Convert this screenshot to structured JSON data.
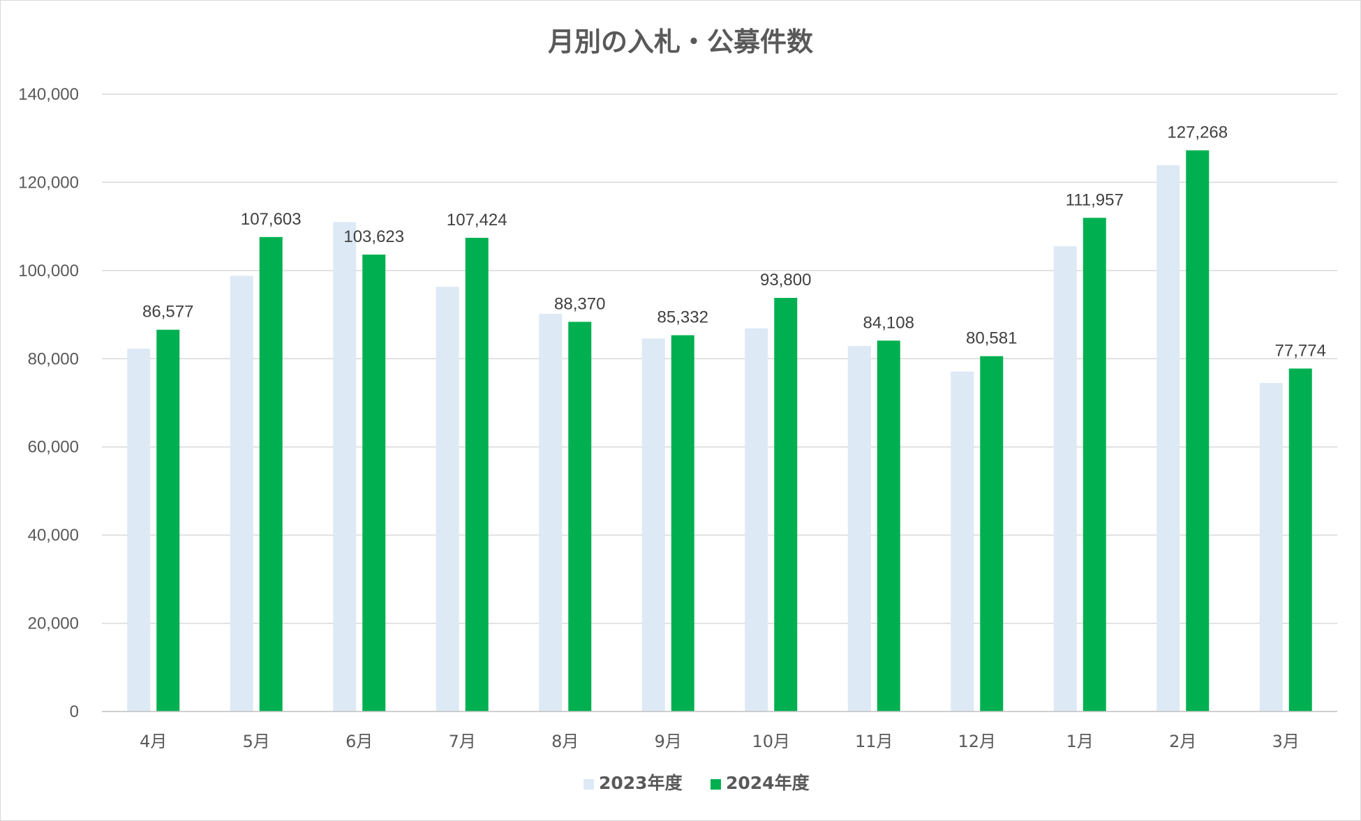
{
  "chart_data": {
    "type": "bar",
    "title": "月別の入札・公募件数",
    "categories": [
      "4月",
      "5月",
      "6月",
      "7月",
      "8月",
      "9月",
      "10月",
      "11月",
      "12月",
      "1月",
      "2月",
      "3月"
    ],
    "series": [
      {
        "name": "2023年度",
        "color": "#dde9f5",
        "values": [
          82300,
          98800,
          111000,
          96300,
          90200,
          84600,
          86900,
          82900,
          77100,
          105500,
          123900,
          74500
        ],
        "data_labels": []
      },
      {
        "name": "2024年度",
        "color": "#00b050",
        "values": [
          86577,
          107603,
          103623,
          107424,
          88370,
          85332,
          93800,
          84108,
          80581,
          111957,
          127268,
          77774
        ],
        "data_labels": [
          "86,577",
          "107,603",
          "103,623",
          "107,424",
          "88,370",
          "85,332",
          "93,800",
          "84,108",
          "80,581",
          "111,957",
          "127,268",
          "77,774"
        ]
      }
    ],
    "yticks": [
      "0",
      "20,000",
      "40,000",
      "60,000",
      "80,000",
      "100,000",
      "120,000",
      "140,000"
    ],
    "ylim": [
      0,
      140000
    ],
    "xlabel": "",
    "ylabel": "",
    "grid": true,
    "legend_position": "bottom"
  }
}
